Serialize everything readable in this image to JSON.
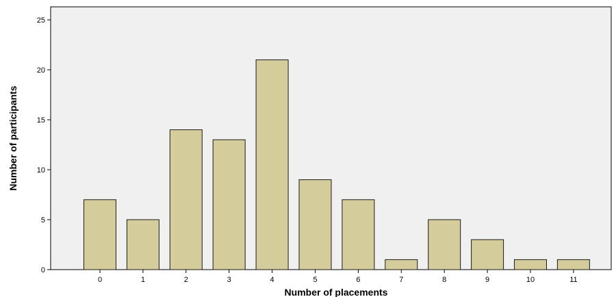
{
  "chart_data": {
    "type": "bar",
    "title": "",
    "xlabel": "Number of placements",
    "ylabel": "Number of participants",
    "categories": [
      "0",
      "1",
      "2",
      "3",
      "4",
      "5",
      "6",
      "7",
      "8",
      "9",
      "10",
      "11"
    ],
    "values": [
      7,
      5,
      14,
      13,
      21,
      9,
      7,
      1,
      5,
      3,
      1,
      1
    ],
    "ylim": [
      0,
      26
    ],
    "yticks": [
      "0",
      "5",
      "10",
      "15",
      "20",
      "25"
    ],
    "grid": false,
    "legend": "none",
    "colors": {
      "bar_fill": "#d4cc9a",
      "bar_stroke": "#1a1a1a",
      "plot_background": "#f0f0f0",
      "axis": "#000000"
    }
  }
}
